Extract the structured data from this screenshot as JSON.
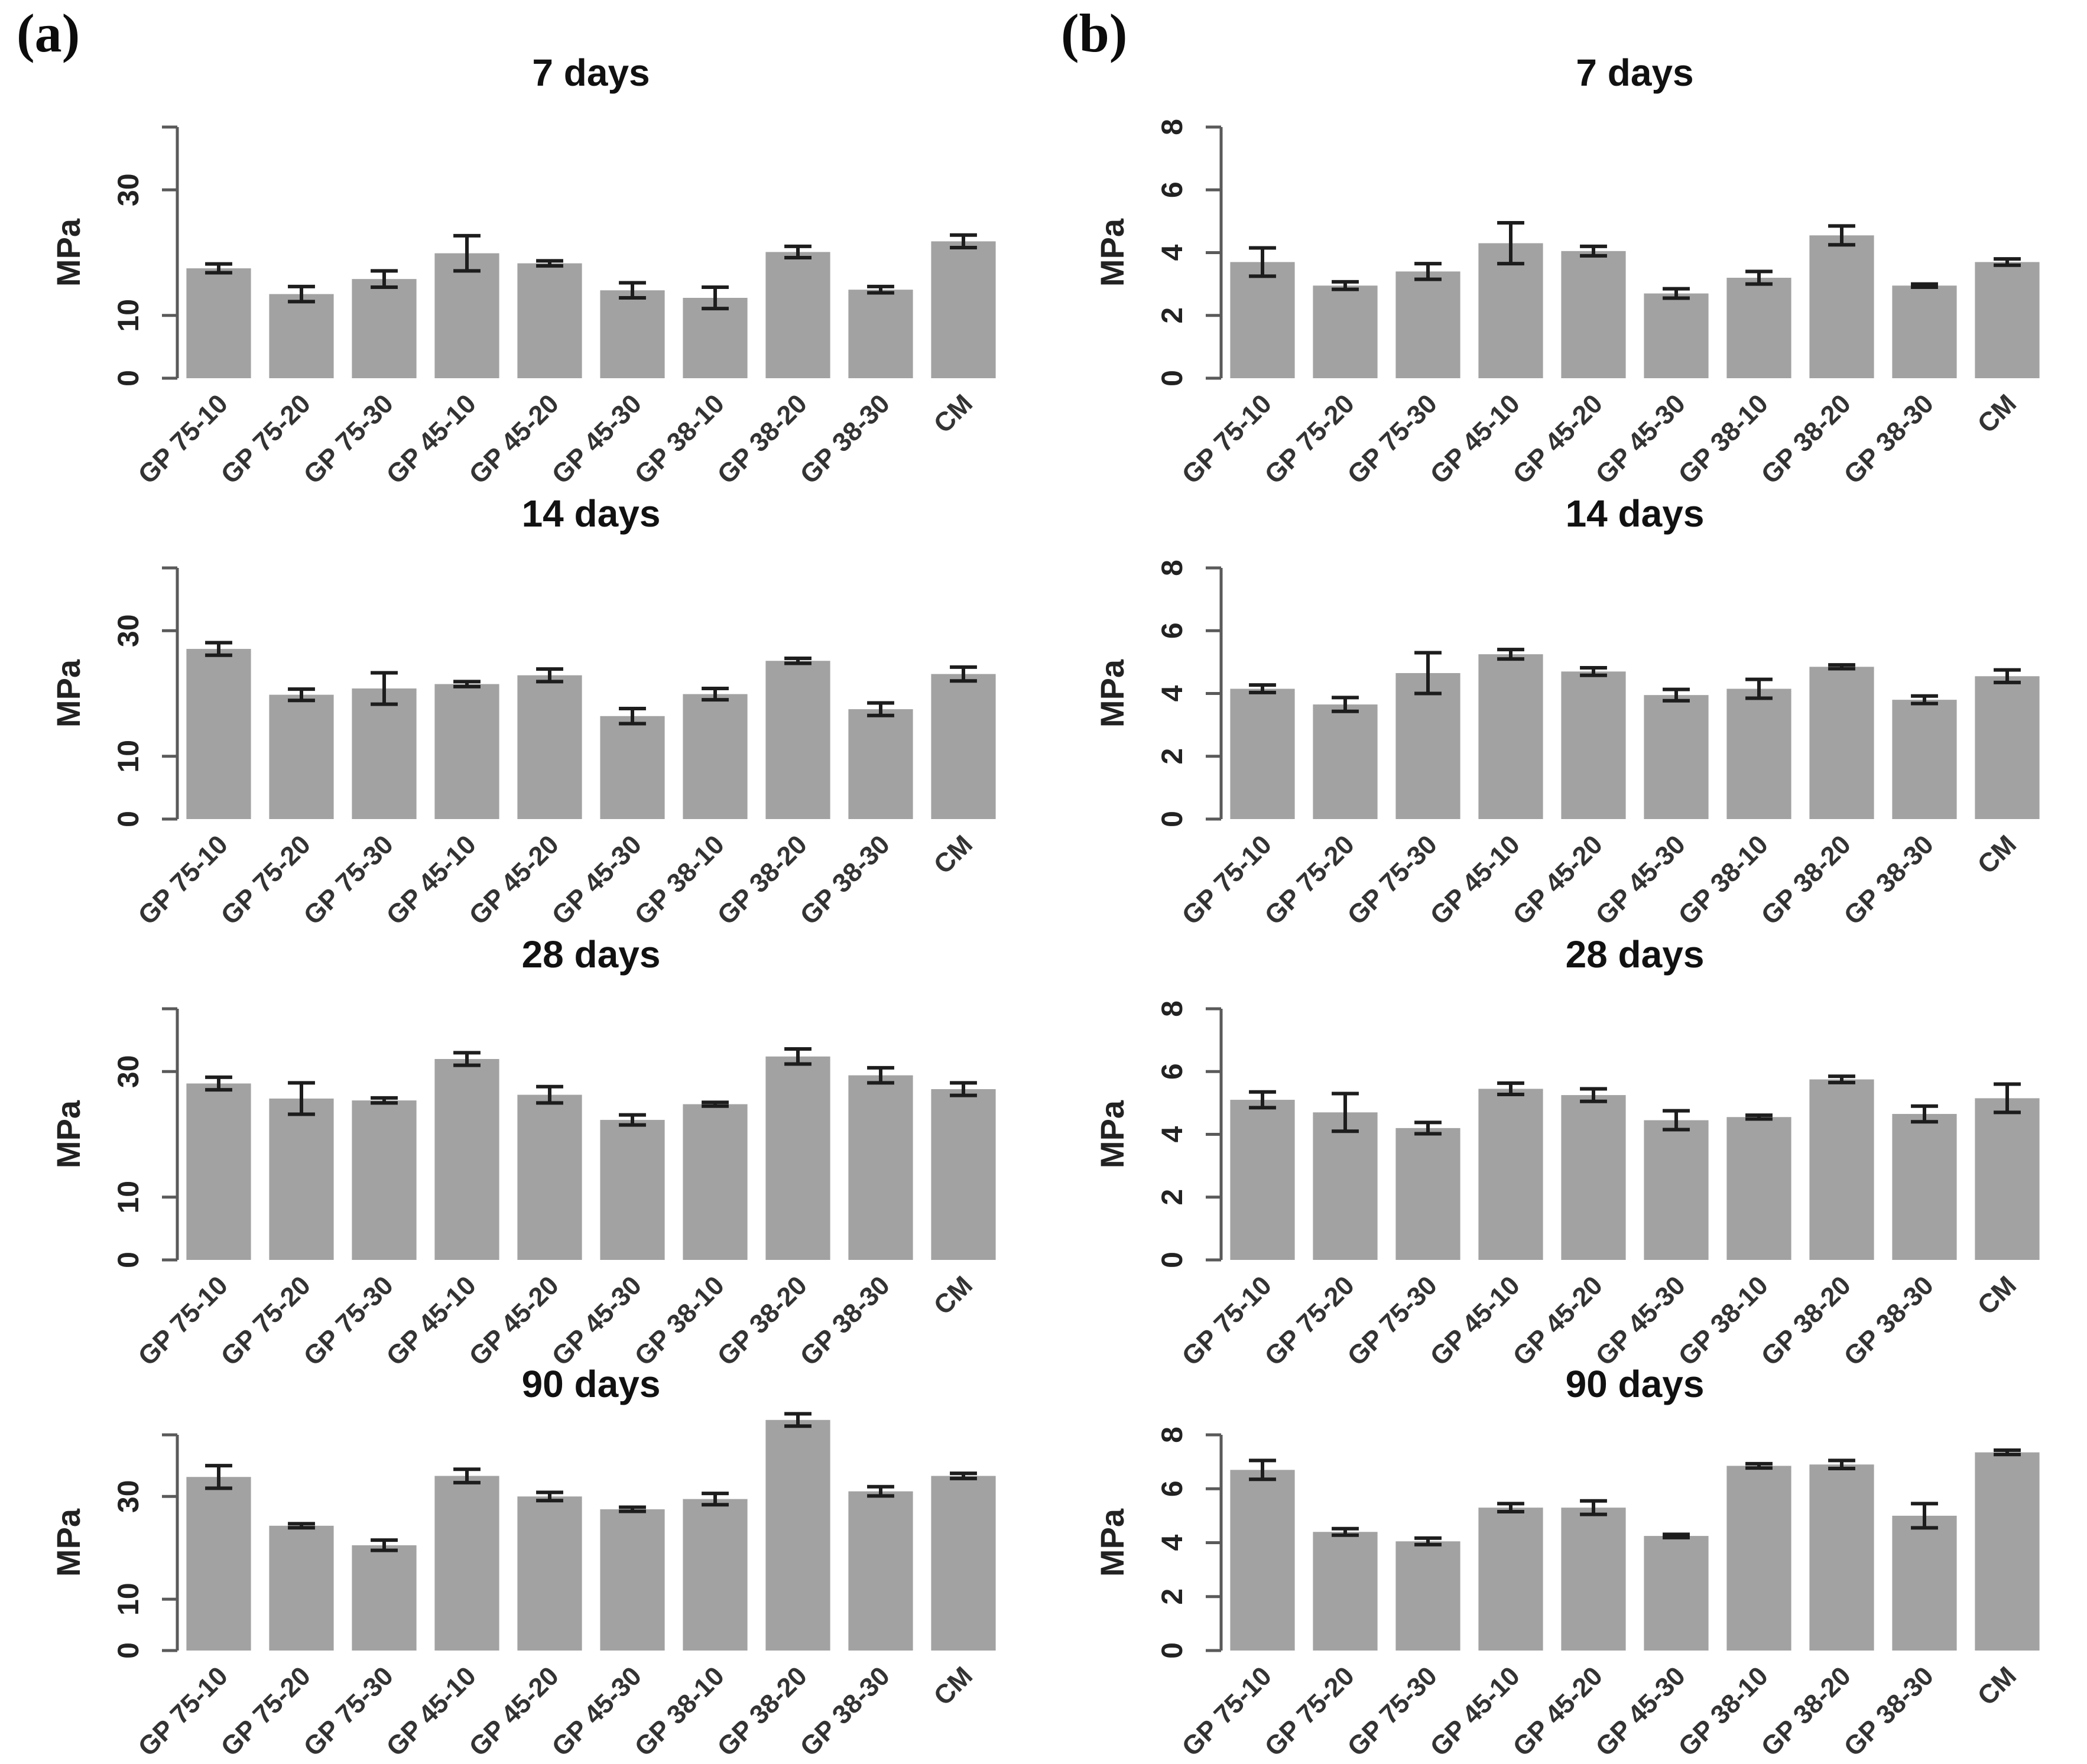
{
  "figure": {
    "panel_a_label": "(a)",
    "panel_b_label": "(b)",
    "ylabel": "MPa",
    "bar_color": "#a2a2a2",
    "error_color": "#1d1d1d",
    "axis_color": "#5a5a5a",
    "background": "#ffffff"
  },
  "chart_data": [
    {
      "type": "bar",
      "panel": "a",
      "row": 0,
      "title": "7 days",
      "ylabel": "MPa",
      "categories": [
        "GP 75-10",
        "GP 75-20",
        "GP 75-30",
        "GP 45-10",
        "GP 45-20",
        "GP 45-30",
        "GP 38-10",
        "GP 38-20",
        "GP 38-30",
        "CM"
      ],
      "values": [
        17.5,
        13.4,
        15.8,
        19.9,
        18.3,
        14.0,
        12.8,
        20.1,
        14.1,
        21.8
      ],
      "errors": [
        0.7,
        1.2,
        1.3,
        2.8,
        0.4,
        1.2,
        1.7,
        0.9,
        0.5,
        1.0
      ],
      "ylim": [
        0,
        40
      ],
      "axis_top": 40,
      "yticks": [
        0,
        10,
        30
      ],
      "ytick_labels": [
        "0",
        "10",
        "30"
      ],
      "grid": false,
      "legend": false
    },
    {
      "type": "bar",
      "panel": "b",
      "row": 0,
      "title": "7 days",
      "ylabel": "MPa",
      "categories": [
        "GP 75-10",
        "GP 75-20",
        "GP 75-30",
        "GP 45-10",
        "GP 45-20",
        "GP 45-30",
        "GP 38-10",
        "GP 38-20",
        "GP 38-30",
        "CM"
      ],
      "values": [
        3.7,
        2.95,
        3.4,
        4.3,
        4.05,
        2.7,
        3.2,
        4.55,
        2.95,
        3.7
      ],
      "errors": [
        0.45,
        0.12,
        0.25,
        0.65,
        0.15,
        0.15,
        0.2,
        0.3,
        0.05,
        0.1
      ],
      "ylim": [
        0,
        8
      ],
      "axis_top": 8,
      "yticks": [
        0,
        2,
        4,
        6,
        8
      ],
      "ytick_labels": [
        "0",
        "2",
        "4",
        "6",
        "8"
      ],
      "grid": false,
      "legend": false
    },
    {
      "type": "bar",
      "panel": "a",
      "row": 1,
      "title": "14 days",
      "ylabel": "MPa",
      "categories": [
        "GP 75-10",
        "GP 75-20",
        "GP 75-30",
        "GP 45-10",
        "GP 45-20",
        "GP 45-30",
        "GP 38-10",
        "GP 38-20",
        "GP 38-30",
        "CM"
      ],
      "values": [
        27.1,
        19.8,
        20.8,
        21.5,
        22.9,
        16.4,
        19.9,
        25.2,
        17.5,
        23.1
      ],
      "errors": [
        1.0,
        0.9,
        2.5,
        0.4,
        1.0,
        1.2,
        0.9,
        0.4,
        1.0,
        1.1
      ],
      "ylim": [
        0,
        40
      ],
      "axis_top": 40,
      "yticks": [
        0,
        10,
        30
      ],
      "ytick_labels": [
        "0",
        "10",
        "30"
      ],
      "grid": false,
      "legend": false
    },
    {
      "type": "bar",
      "panel": "b",
      "row": 1,
      "title": "14 days",
      "ylabel": "MPa",
      "categories": [
        "GP 75-10",
        "GP 75-20",
        "GP 75-30",
        "GP 45-10",
        "GP 45-20",
        "GP 45-30",
        "GP 38-10",
        "GP 38-20",
        "GP 38-30",
        "CM"
      ],
      "values": [
        4.15,
        3.65,
        4.65,
        5.25,
        4.7,
        3.95,
        4.15,
        4.85,
        3.8,
        4.55
      ],
      "errors": [
        0.12,
        0.22,
        0.65,
        0.15,
        0.12,
        0.18,
        0.3,
        0.06,
        0.12,
        0.2
      ],
      "ylim": [
        0,
        8
      ],
      "axis_top": 8,
      "yticks": [
        0,
        2,
        4,
        6,
        8
      ],
      "ytick_labels": [
        "0",
        "2",
        "4",
        "6",
        "8"
      ],
      "grid": false,
      "legend": false
    },
    {
      "type": "bar",
      "panel": "a",
      "row": 2,
      "title": "28 days",
      "ylabel": "MPa",
      "categories": [
        "GP 75-10",
        "GP 75-20",
        "GP 75-30",
        "GP 45-10",
        "GP 45-20",
        "GP 45-30",
        "GP 38-10",
        "GP 38-20",
        "GP 38-30",
        "CM"
      ],
      "values": [
        28.1,
        25.7,
        25.4,
        32.0,
        26.3,
        22.3,
        24.8,
        32.4,
        29.4,
        27.2
      ],
      "errors": [
        1.0,
        2.5,
        0.4,
        1.0,
        1.3,
        0.8,
        0.3,
        1.2,
        1.2,
        1.0
      ],
      "ylim": [
        0,
        40
      ],
      "axis_top": 40,
      "yticks": [
        0,
        10,
        30
      ],
      "ytick_labels": [
        "0",
        "10",
        "30"
      ],
      "grid": false,
      "legend": false
    },
    {
      "type": "bar",
      "panel": "b",
      "row": 2,
      "title": "28 days",
      "ylabel": "MPa",
      "categories": [
        "GP 75-10",
        "GP 75-20",
        "GP 75-30",
        "GP 45-10",
        "GP 45-20",
        "GP 45-30",
        "GP 38-10",
        "GP 38-20",
        "GP 38-30",
        "CM"
      ],
      "values": [
        5.1,
        4.7,
        4.2,
        5.45,
        5.25,
        4.45,
        4.55,
        5.75,
        4.65,
        5.15
      ],
      "errors": [
        0.25,
        0.6,
        0.18,
        0.18,
        0.2,
        0.3,
        0.06,
        0.1,
        0.25,
        0.45
      ],
      "ylim": [
        0,
        8
      ],
      "axis_top": 8,
      "yticks": [
        0,
        2,
        4,
        6,
        8
      ],
      "ytick_labels": [
        "0",
        "2",
        "4",
        "6",
        "8"
      ],
      "grid": false,
      "legend": false
    },
    {
      "type": "bar",
      "panel": "a",
      "row": 3,
      "title": "90 days",
      "ylabel": "MPa",
      "categories": [
        "GP 75-10",
        "GP 75-20",
        "GP 75-30",
        "GP 45-10",
        "GP 45-20",
        "GP 45-30",
        "GP 38-10",
        "GP 38-20",
        "GP 38-30",
        "CM"
      ],
      "values": [
        33.8,
        24.3,
        20.5,
        34.0,
        30.0,
        27.5,
        29.5,
        44.9,
        31.0,
        34.0
      ],
      "errors": [
        2.2,
        0.4,
        1.0,
        1.3,
        0.8,
        0.4,
        1.1,
        1.2,
        0.9,
        0.5
      ],
      "ylim": [
        0,
        42
      ],
      "axis_top": 42,
      "yticks": [
        0,
        10,
        30
      ],
      "ytick_labels": [
        "0",
        "10",
        "30"
      ],
      "grid": false,
      "legend": false
    },
    {
      "type": "bar",
      "panel": "b",
      "row": 3,
      "title": "90 days",
      "ylabel": "MPa",
      "categories": [
        "GP 75-10",
        "GP 75-20",
        "GP 75-30",
        "GP 45-10",
        "GP 45-20",
        "GP 45-30",
        "GP 38-10",
        "GP 38-20",
        "GP 38-30",
        "CM"
      ],
      "values": [
        6.7,
        4.4,
        4.05,
        5.3,
        5.3,
        4.25,
        6.85,
        6.9,
        5.0,
        7.35
      ],
      "errors": [
        0.35,
        0.12,
        0.12,
        0.15,
        0.25,
        0.06,
        0.08,
        0.15,
        0.45,
        0.08
      ],
      "ylim": [
        0,
        8
      ],
      "axis_top": 8,
      "yticks": [
        0,
        2,
        4,
        6,
        8
      ],
      "ytick_labels": [
        "0",
        "2",
        "4",
        "6",
        "8"
      ],
      "grid": false,
      "legend": false
    }
  ]
}
